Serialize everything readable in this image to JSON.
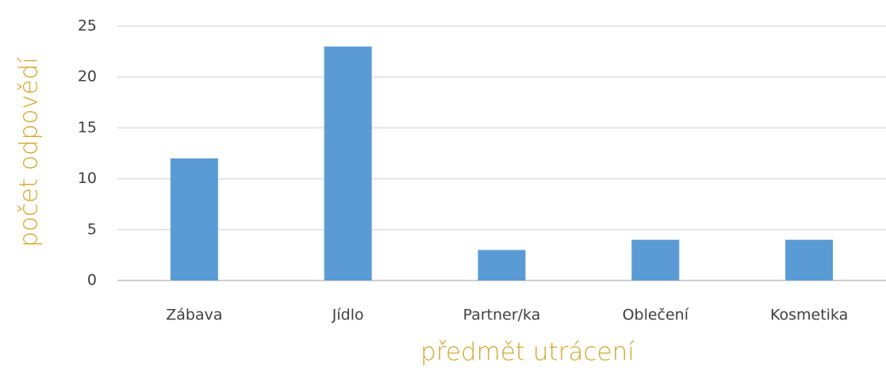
{
  "chart_data": {
    "type": "bar",
    "categories": [
      "Zábava",
      "Jídlo",
      "Partner/ka",
      "Oblečení",
      "Kosmetika"
    ],
    "values": [
      12,
      23,
      3,
      4,
      4
    ],
    "color": "#5b9bd5",
    "x_label": "předmět utrácení",
    "y_label": "počet odpovědí",
    "ylim": [
      0,
      25
    ],
    "yticks": [
      0,
      5,
      10,
      15,
      20,
      25
    ],
    "grid": true
  }
}
